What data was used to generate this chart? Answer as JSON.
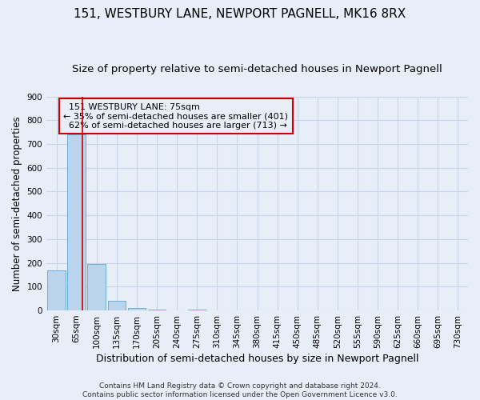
{
  "title": "151, WESTBURY LANE, NEWPORT PAGNELL, MK16 8RX",
  "subtitle": "Size of property relative to semi-detached houses in Newport Pagnell",
  "xlabel": "Distribution of semi-detached houses by size in Newport Pagnell",
  "ylabel": "Number of semi-detached properties",
  "footer_line1": "Contains HM Land Registry data © Crown copyright and database right 2024.",
  "footer_line2": "Contains public sector information licensed under the Open Government Licence v3.0.",
  "bar_categories": [
    "30sqm",
    "65sqm",
    "100sqm",
    "135sqm",
    "170sqm",
    "205sqm",
    "240sqm",
    "275sqm",
    "310sqm",
    "345sqm",
    "380sqm",
    "415sqm",
    "450sqm",
    "485sqm",
    "520sqm",
    "555sqm",
    "590sqm",
    "625sqm",
    "660sqm",
    "695sqm",
    "730sqm"
  ],
  "bar_values": [
    170,
    740,
    195,
    40,
    10,
    5,
    0,
    5,
    0,
    0,
    0,
    0,
    0,
    0,
    0,
    0,
    0,
    0,
    0,
    0,
    0
  ],
  "bar_color": "#bad4ed",
  "bar_edge_color": "#6aaed6",
  "grid_color": "#c8d4e8",
  "bg_color": "#e8eef8",
  "property_sqm_label": "75sqm",
  "property_name": "151 WESTBURY LANE",
  "pct_smaller": 35,
  "n_smaller": 401,
  "pct_larger": 62,
  "n_larger": 713,
  "annotation_box_color": "#cc0000",
  "vline_color": "#cc0000",
  "ylim": [
    0,
    900
  ],
  "title_fontsize": 11,
  "subtitle_fontsize": 9.5,
  "xlabel_fontsize": 9,
  "ylabel_fontsize": 8.5,
  "tick_fontsize": 7.5,
  "annotation_fontsize": 8,
  "footer_fontsize": 6.5
}
